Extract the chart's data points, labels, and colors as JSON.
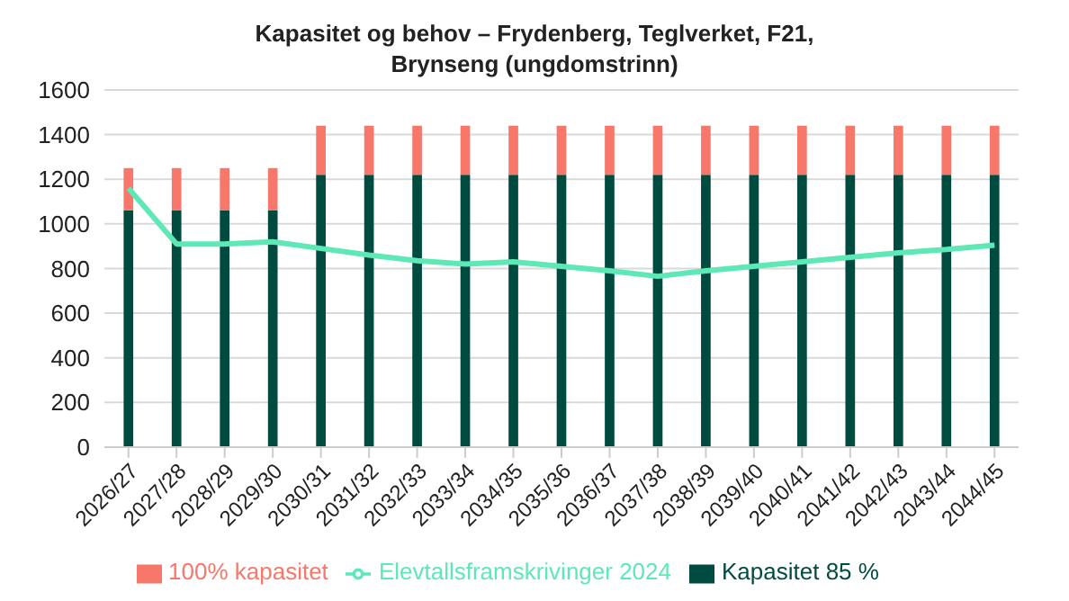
{
  "chart_data": {
    "type": "bar",
    "title": "Kapasitet og behov – Frydenberg, Teglverket, F21, Brynseng (ungdomstrinn)",
    "categories": [
      "2026/27",
      "2027/28",
      "2028/29",
      "2029/30",
      "2030/31",
      "2031/32",
      "2032/33",
      "2033/34",
      "2034/35",
      "2035/36",
      "2036/37",
      "2037/38",
      "2038/39",
      "2039/40",
      "2040/41",
      "2041/42",
      "2042/43",
      "2043/44",
      "2044/45"
    ],
    "stacked": true,
    "series": [
      {
        "name": "Kapasitet 85 %",
        "color": "#004b40",
        "values": [
          1060,
          1060,
          1060,
          1060,
          1220,
          1220,
          1220,
          1220,
          1220,
          1220,
          1220,
          1220,
          1220,
          1220,
          1220,
          1220,
          1220,
          1220,
          1220
        ]
      },
      {
        "name": "100% kapasitet",
        "color": "#f7786b",
        "values": [
          190,
          190,
          190,
          190,
          220,
          220,
          220,
          220,
          220,
          220,
          220,
          220,
          220,
          220,
          220,
          220,
          220,
          220,
          220
        ]
      },
      {
        "name": "Elevtallsframskrivinger 2024",
        "type": "line",
        "color": "#5de8b5",
        "values": [
          1160,
          910,
          910,
          920,
          890,
          860,
          835,
          820,
          830,
          810,
          790,
          765,
          790,
          810,
          830,
          850,
          870,
          885,
          905
        ]
      }
    ],
    "ylim": [
      0,
      1600
    ],
    "yticks": [
      0,
      200,
      400,
      600,
      800,
      1000,
      1200,
      1400,
      1600
    ],
    "grid": "y",
    "legend": "bottom",
    "marker": "none"
  }
}
